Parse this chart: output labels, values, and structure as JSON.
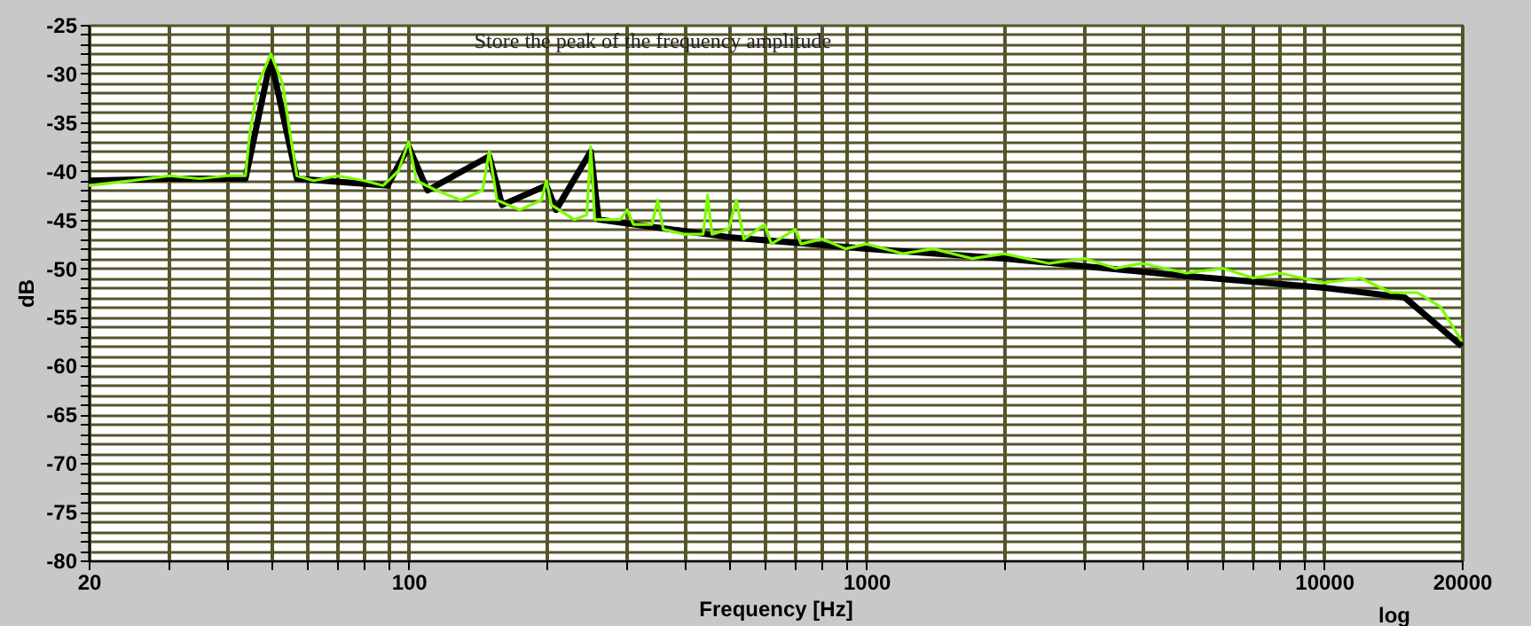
{
  "chart_data": {
    "type": "line",
    "xlabel": "Frequency [Hz]",
    "ylabel": "dB",
    "annotations": [
      "Store the peak of the frequency amplitude",
      "log"
    ],
    "log": "x",
    "grid": true,
    "marker": "none",
    "line_style": "solid",
    "xlim": [
      20,
      20000
    ],
    "ylim": [
      -80,
      -25
    ],
    "xticks": [
      20,
      {
        "value": 30,
        "label": null
      },
      {
        "value": 40,
        "label": null
      },
      {
        "value": 50,
        "label": null
      },
      {
        "value": 60,
        "label": null
      },
      {
        "value": 70,
        "label": null
      },
      {
        "value": 80,
        "label": null
      },
      {
        "value": 90,
        "label": null
      },
      100,
      {
        "value": 200,
        "label": null
      },
      {
        "value": 300,
        "label": null
      },
      {
        "value": 400,
        "label": null
      },
      {
        "value": 500,
        "label": null
      },
      {
        "value": 600,
        "label": null
      },
      {
        "value": 700,
        "label": null
      },
      {
        "value": 800,
        "label": null
      },
      {
        "value": 900,
        "label": null
      },
      1000,
      {
        "value": 2000,
        "label": null
      },
      {
        "value": 3000,
        "label": null
      },
      {
        "value": 4000,
        "label": null
      },
      {
        "value": 5000,
        "label": null
      },
      {
        "value": 6000,
        "label": null
      },
      {
        "value": 7000,
        "label": null
      },
      {
        "value": 8000,
        "label": null
      },
      {
        "value": 9000,
        "label": null
      },
      10000,
      20000
    ],
    "yticks": [
      -80,
      {
        "value": -79,
        "label": null
      },
      {
        "value": -78,
        "label": null
      },
      {
        "value": -77,
        "label": null
      },
      {
        "value": -76,
        "label": null
      },
      -75,
      {
        "value": -74,
        "label": null
      },
      {
        "value": -73,
        "label": null
      },
      {
        "value": -72,
        "label": null
      },
      {
        "value": -71,
        "label": null
      },
      -70,
      {
        "value": -69,
        "label": null
      },
      {
        "value": -68,
        "label": null
      },
      {
        "value": -67,
        "label": null
      },
      {
        "value": -66,
        "label": null
      },
      -65,
      {
        "value": -64,
        "label": null
      },
      {
        "value": -63,
        "label": null
      },
      {
        "value": -62,
        "label": null
      },
      {
        "value": -61,
        "label": null
      },
      -60,
      {
        "value": -59,
        "label": null
      },
      {
        "value": -58,
        "label": null
      },
      {
        "value": -57,
        "label": null
      },
      {
        "value": -56,
        "label": null
      },
      -55,
      {
        "value": -54,
        "label": null
      },
      {
        "value": -53,
        "label": null
      },
      {
        "value": -52,
        "label": null
      },
      {
        "value": -51,
        "label": null
      },
      -50,
      {
        "value": -49,
        "label": null
      },
      {
        "value": -48,
        "label": null
      },
      {
        "value": -47,
        "label": null
      },
      {
        "value": -46,
        "label": null
      },
      -45,
      {
        "value": -44,
        "label": null
      },
      {
        "value": -43,
        "label": null
      },
      {
        "value": -42,
        "label": null
      },
      {
        "value": -41,
        "label": null
      },
      -40,
      {
        "value": -39,
        "label": null
      },
      {
        "value": -38,
        "label": null
      },
      {
        "value": -37,
        "label": null
      },
      {
        "value": -36,
        "label": null
      },
      -35,
      {
        "value": -34,
        "label": null
      },
      {
        "value": -33,
        "label": null
      },
      {
        "value": -32,
        "label": null
      },
      {
        "value": -31,
        "label": null
      },
      -30,
      {
        "value": -29,
        "label": null
      },
      {
        "value": -28,
        "label": null
      },
      {
        "value": -27,
        "label": null
      },
      {
        "value": -26,
        "label": null
      },
      -25
    ],
    "series": [
      {
        "color": "#000000",
        "x": [
          20,
          30,
          44,
          50,
          57,
          90,
          100,
          110,
          150,
          160,
          200,
          210,
          250,
          260,
          500,
          1000,
          2000,
          5000,
          10000,
          15000,
          20000
        ],
        "values": [
          -41,
          -40.8,
          -40.8,
          -28.5,
          -40.8,
          -41.5,
          -37.5,
          -42,
          -38.5,
          -43.5,
          -41.5,
          -44,
          -38,
          -45,
          -46.8,
          -48,
          -49,
          -50.8,
          -52,
          -53,
          -58
        ]
      },
      {
        "color": "#7cfc00",
        "x": [
          20,
          25,
          30,
          35,
          40,
          44,
          45,
          47,
          50,
          53,
          55,
          57,
          62,
          70,
          80,
          88,
          95,
          100,
          104,
          115,
          130,
          145,
          150,
          156,
          175,
          195,
          200,
          205,
          230,
          245,
          250,
          255,
          290,
          300,
          310,
          340,
          350,
          360,
          400,
          440,
          450,
          460,
          500,
          520,
          540,
          600,
          620,
          700,
          720,
          800,
          900,
          1000,
          1200,
          1400,
          1700,
          2000,
          2500,
          3000,
          3500,
          4000,
          5000,
          6000,
          7000,
          8000,
          10000,
          12000,
          14000,
          16000,
          18000,
          20000
        ],
        "values": [
          -41.5,
          -41,
          -40.5,
          -40.8,
          -40.5,
          -40.5,
          -36,
          -31,
          -28,
          -31,
          -36,
          -40.5,
          -41,
          -40.5,
          -41,
          -41.5,
          -40,
          -37,
          -41,
          -42,
          -43,
          -42,
          -38,
          -43,
          -44,
          -43,
          -41,
          -43.5,
          -45,
          -44.5,
          -37.5,
          -45,
          -45,
          -44,
          -45.5,
          -45.5,
          -43,
          -46,
          -46.5,
          -46.5,
          -42.5,
          -46.5,
          -46,
          -43,
          -47,
          -45.5,
          -47.5,
          -46,
          -47.5,
          -47,
          -48,
          -47.5,
          -48.5,
          -48,
          -49,
          -48.5,
          -49.5,
          -49,
          -50,
          -49.5,
          -50.5,
          -50,
          -51,
          -50.5,
          -51.5,
          -51,
          -52.5,
          -52.5,
          -54,
          -57.5
        ]
      }
    ]
  }
}
